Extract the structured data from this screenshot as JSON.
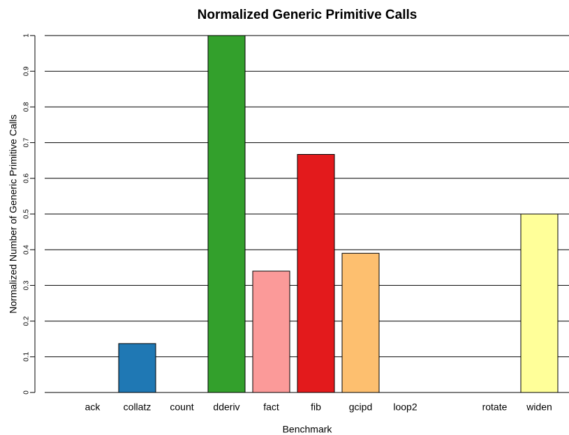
{
  "chart_data": {
    "type": "bar",
    "title": "Normalized Generic Primitive Calls",
    "x_label": "Benchmark",
    "y_label": "Normalized Number of Generic Primitive Calls",
    "categories": [
      "ack",
      "collatz",
      "count",
      "dderiv",
      "fact",
      "fib",
      "gcipd",
      "loop2",
      null,
      "rotate",
      "widen"
    ],
    "values": [
      null,
      0.137,
      0,
      1,
      0.34,
      0.667,
      0.39,
      0,
      0,
      0,
      0.5
    ],
    "colors": [
      "#a6cee3",
      "#1f78b4",
      "#b2df8a",
      "#33a02c",
      "#fb9a99",
      "#e31a1c",
      "#fdbf6f",
      "#ff7f00",
      "#cab2d6",
      "#6a3d9a",
      "#ffff99"
    ],
    "ylim": [
      0,
      1
    ],
    "yticks": [
      0,
      0.1,
      0.2,
      0.3,
      0.4,
      0.5,
      0.6,
      0.7,
      0.8,
      0.9,
      1
    ],
    "grid": true
  }
}
